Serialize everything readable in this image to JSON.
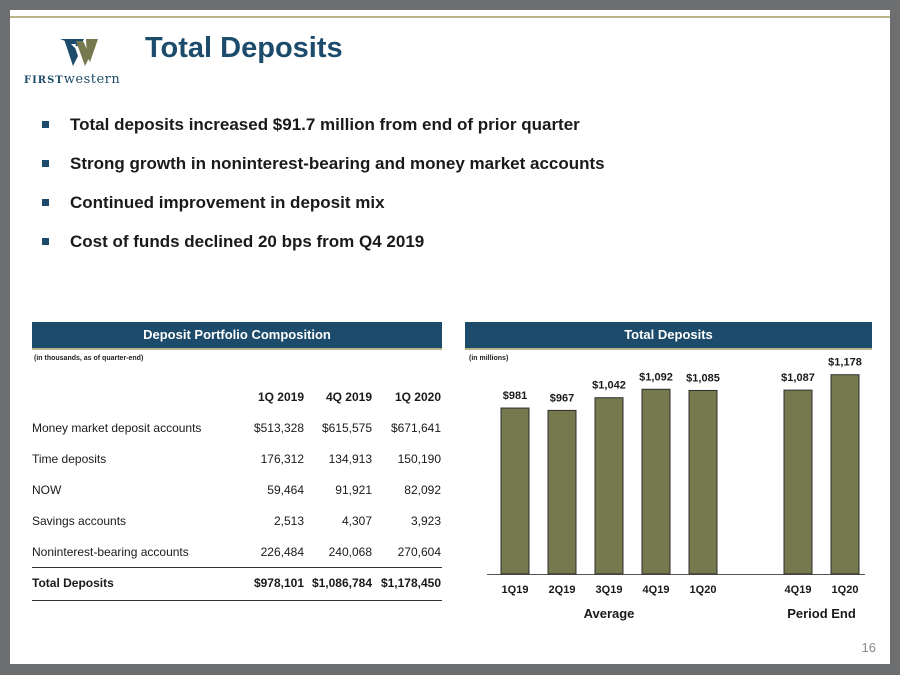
{
  "logo": {
    "prefix": "FIRST",
    "suffix": "western"
  },
  "title": "Total Deposits",
  "bullets": [
    "Total deposits increased $91.7 million from end of prior quarter",
    "Strong growth in noninterest-bearing and money market accounts",
    "Continued improvement in deposit mix",
    "Cost of funds declined 20 bps from Q4 2019"
  ],
  "table_panel": {
    "header": "Deposit Portfolio Composition",
    "note": "(in thousands, as of quarter-end)",
    "columns": [
      "",
      "1Q 2019",
      "4Q 2019",
      "1Q 2020"
    ],
    "rows": [
      [
        "Money market deposit accounts",
        "$513,328",
        "$615,575",
        "$671,641"
      ],
      [
        "Time deposits",
        "176,312",
        "134,913",
        "150,190"
      ],
      [
        "NOW",
        "59,464",
        "91,921",
        "82,092"
      ],
      [
        "Savings accounts",
        "2,513",
        "4,307",
        "3,923"
      ],
      [
        "Noninterest-bearing accounts",
        "226,484",
        "240,068",
        "270,604"
      ]
    ],
    "total": [
      "Total Deposits",
      "$978,101",
      "$1,086,784",
      "$1,178,450"
    ]
  },
  "chart_panel": {
    "header": "Total Deposits",
    "note": "(in millions)"
  },
  "chart_data": {
    "type": "bar",
    "categories": [
      "1Q19",
      "2Q19",
      "3Q19",
      "4Q19",
      "1Q20",
      "4Q19",
      "1Q20"
    ],
    "values": [
      981,
      967,
      1042,
      1092,
      1085,
      1087,
      1178
    ],
    "labels": [
      "$981",
      "$967",
      "$1,042",
      "$1,092",
      "$1,085",
      "$1,087",
      "$1,178"
    ],
    "groups": [
      {
        "name": "Average",
        "indices": [
          0,
          1,
          2,
          3,
          4
        ]
      },
      {
        "name": "Period End",
        "indices": [
          5,
          6
        ]
      }
    ],
    "ylim": [
      0,
      1200
    ],
    "title": "Total Deposits",
    "ylabel": "",
    "xlabel": "",
    "bar_color": "#76794e",
    "grid": false
  },
  "page_number": "16"
}
